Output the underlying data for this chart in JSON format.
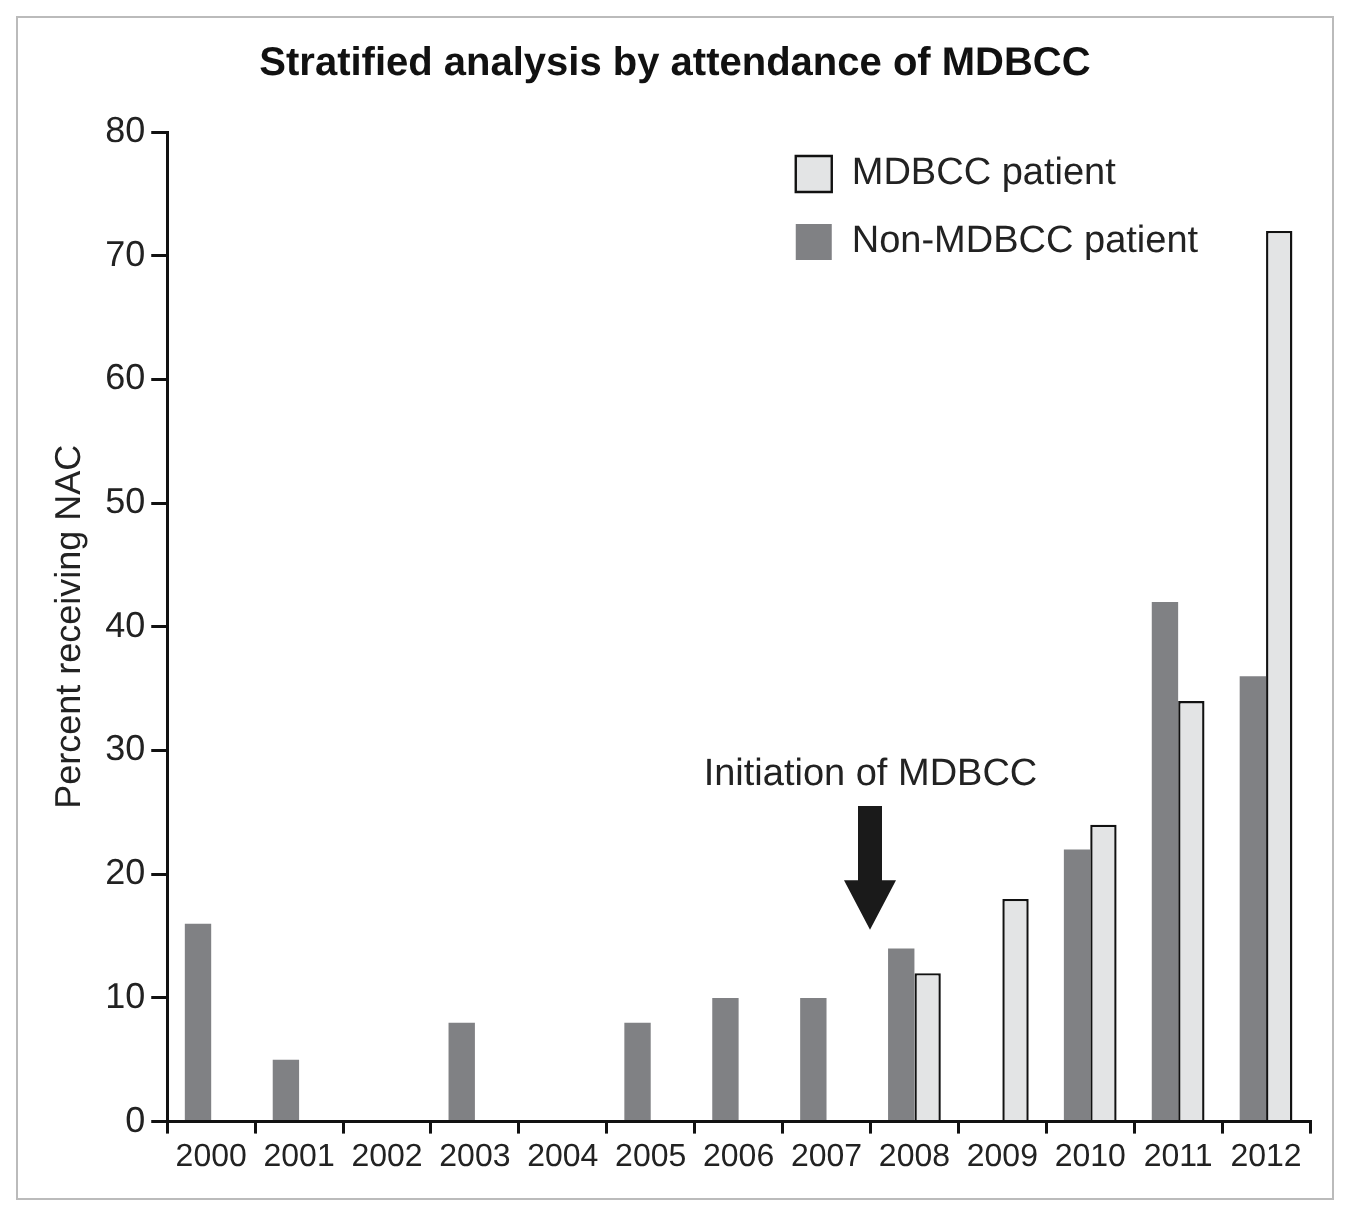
{
  "chart_data": {
    "type": "bar",
    "title": "Stratified analysis by attendance of MDBCC",
    "ylabel": "Percent receiving NAC",
    "categories": [
      "2000",
      "2001",
      "2002",
      "2003",
      "2004",
      "2005",
      "2006",
      "2007",
      "2008",
      "2009",
      "2010",
      "2011",
      "2012"
    ],
    "series": [
      {
        "name": "Non-MDBCC patient",
        "color": "#808184",
        "values": [
          16,
          5,
          0,
          8,
          0,
          8,
          10,
          10,
          14,
          0,
          22,
          42,
          36
        ]
      },
      {
        "name": "MDBCC patient",
        "color": "#e3e4e5",
        "values": [
          null,
          null,
          null,
          null,
          null,
          null,
          null,
          null,
          12,
          18,
          24,
          34,
          72
        ]
      }
    ],
    "ylim": [
      0,
      80
    ],
    "yticks": [
      0,
      10,
      20,
      30,
      40,
      50,
      60,
      70,
      80
    ],
    "grid": false,
    "legend": "top right",
    "annotations": [
      "Initiation of MDBCC"
    ]
  }
}
